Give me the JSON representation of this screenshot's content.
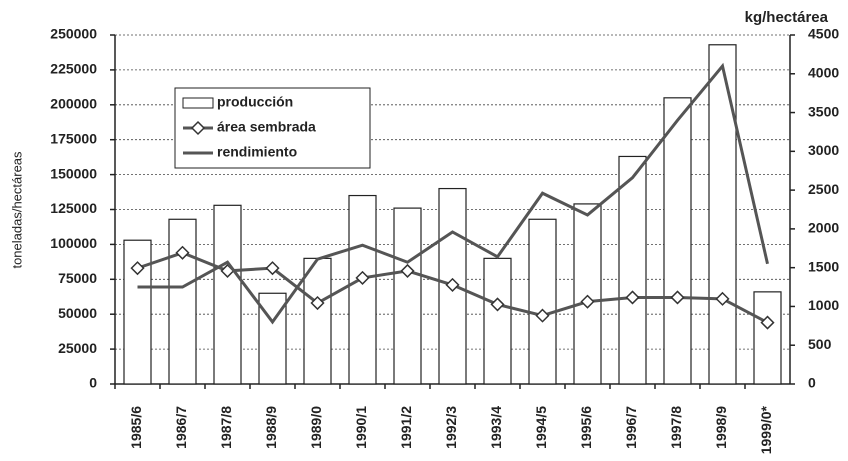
{
  "chart_data": {
    "type": "bar",
    "y_label": "toneladas/hectáreas",
    "y2_label": "kg/hectárea",
    "categories": [
      "1985/6",
      "1986/7",
      "1987/8",
      "1988/9",
      "1989/0",
      "1990/1",
      "1991/2",
      "1992/3",
      "1993/4",
      "1994/5",
      "1995/6",
      "1996/7",
      "1997/8",
      "1998/9",
      "1999/0*"
    ],
    "series": [
      {
        "name": "producción",
        "type": "bar",
        "color": "#ffffff",
        "values": [
          103000,
          118000,
          128000,
          65000,
          90000,
          135000,
          126000,
          140000,
          90000,
          118000,
          129000,
          163000,
          205000,
          243000,
          66000
        ]
      },
      {
        "name": "área sembrada",
        "type": "line",
        "marker": "diamond",
        "color": "#555555",
        "values": [
          83000,
          94000,
          81000,
          83000,
          58000,
          76000,
          81000,
          71000,
          57000,
          49000,
          59000,
          62000,
          62000,
          61000,
          44000
        ]
      },
      {
        "name": "rendimiento",
        "type": "line",
        "axis": "y2",
        "color": "#555555",
        "values": [
          1250,
          1250,
          1570,
          800,
          1610,
          1790,
          1570,
          1960,
          1640,
          2460,
          2180,
          2660,
          3400,
          4100,
          1550
        ]
      }
    ],
    "ylim": [
      0,
      250000
    ],
    "yticks": [
      0,
      25000,
      50000,
      75000,
      100000,
      125000,
      150000,
      175000,
      200000,
      225000,
      250000
    ],
    "y2lim": [
      0,
      4500
    ],
    "y2ticks": [
      0,
      500,
      1000,
      1500,
      2000,
      2500,
      3000,
      3500,
      4000,
      4500
    ],
    "grid": true,
    "legend": "upper left"
  }
}
